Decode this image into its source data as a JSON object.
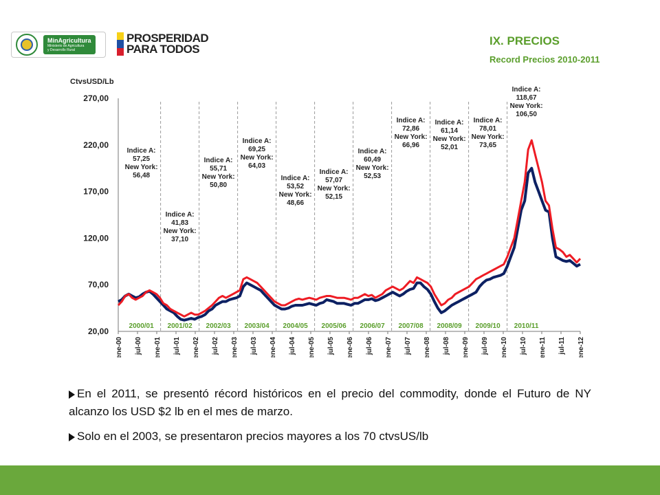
{
  "header": {
    "logo1": {
      "name": "MinAgricultura",
      "subtitle": "Ministerio de Agricultura y Desarrollo Rural"
    },
    "logo2": {
      "line1": "PROSPERIDAD",
      "line2": "PARA TODOS"
    },
    "title": "IX. PRECIOS",
    "subtitle": "Record Precios 2010-2011"
  },
  "colors": {
    "accent_green": "#5a9e2b",
    "footer_green": "#6aa83c",
    "series_indice": "#0d2163",
    "series_ny": "#ee1c24"
  },
  "chart_data": {
    "type": "line",
    "ylabel": "CtvsUSD/Lb",
    "ylim": [
      20,
      270
    ],
    "yticks": [
      "270,00",
      "220,00",
      "170,00",
      "120,00",
      "70,00",
      "20,00"
    ],
    "grid": false,
    "xticks": [
      "ene-00",
      "jul-00",
      "ene-01",
      "jul-01",
      "ene-02",
      "jul-02",
      "ene-03",
      "jul-03",
      "ene-04",
      "jul-04",
      "ene-05",
      "jul-05",
      "ene-06",
      "jul-06",
      "ene-07",
      "jul-07",
      "ene-08",
      "jul-08",
      "ene-09",
      "jul-09",
      "ene-10",
      "jul-10",
      "ene-11",
      "jul-11",
      "ene-12"
    ],
    "periods": [
      "2000/01",
      "2001/02",
      "2002/03",
      "2003/04",
      "2004/05",
      "2005/06",
      "2006/07",
      "2007/08",
      "2008/09",
      "2009/10",
      "2010/11"
    ],
    "annotations": [
      {
        "lines": [
          "Indice A:",
          "57,25",
          "New York:",
          "56,48"
        ]
      },
      {
        "lines": [
          "Indice A:",
          "41,83",
          "New York:",
          "37,10"
        ]
      },
      {
        "lines": [
          "Indice A:",
          "55,71",
          "New York:",
          "50,80"
        ]
      },
      {
        "lines": [
          "Indice A:",
          "69,25",
          "New York:",
          "64,03"
        ]
      },
      {
        "lines": [
          "Indice A:",
          "53,52",
          "New York:",
          "48,66"
        ]
      },
      {
        "lines": [
          "Indice A:",
          "57,07",
          "New York:",
          "52,15"
        ]
      },
      {
        "lines": [
          "Indice A:",
          "60,49",
          "New York:",
          "52,53"
        ]
      },
      {
        "lines": [
          "Indice A:",
          "72,86",
          "New York:",
          "66,96"
        ]
      },
      {
        "lines": [
          "Indice A:",
          "61,14",
          "New York:",
          "52,01"
        ]
      },
      {
        "lines": [
          "Indice A:",
          "78,01",
          "New York:",
          "73,65"
        ]
      },
      {
        "lines": [
          "Indice A:",
          "118,67",
          "New York:",
          "106,50"
        ]
      }
    ],
    "series": [
      {
        "color": "#0d2163",
        "points": [
          [
            0,
            52
          ],
          [
            1,
            54
          ],
          [
            2,
            58
          ],
          [
            3,
            60
          ],
          [
            4,
            58
          ],
          [
            5,
            56
          ],
          [
            6,
            57
          ],
          [
            7,
            60
          ],
          [
            8,
            62
          ],
          [
            9,
            63
          ],
          [
            10,
            60
          ],
          [
            11,
            56
          ],
          [
            12,
            52
          ],
          [
            13,
            48
          ],
          [
            14,
            44
          ],
          [
            15,
            42
          ],
          [
            16,
            40
          ],
          [
            17,
            36
          ],
          [
            18,
            33
          ],
          [
            19,
            32
          ],
          [
            20,
            33
          ],
          [
            21,
            34
          ],
          [
            22,
            33
          ],
          [
            23,
            35
          ],
          [
            24,
            36
          ],
          [
            25,
            38
          ],
          [
            26,
            42
          ],
          [
            27,
            44
          ],
          [
            28,
            48
          ],
          [
            29,
            50
          ],
          [
            30,
            52
          ],
          [
            31,
            52
          ],
          [
            32,
            54
          ],
          [
            33,
            55
          ],
          [
            34,
            56
          ],
          [
            35,
            58
          ],
          [
            36,
            68
          ],
          [
            37,
            72
          ],
          [
            38,
            70
          ],
          [
            39,
            68
          ],
          [
            40,
            66
          ],
          [
            41,
            64
          ],
          [
            42,
            60
          ],
          [
            43,
            56
          ],
          [
            44,
            52
          ],
          [
            45,
            48
          ],
          [
            46,
            46
          ],
          [
            47,
            44
          ],
          [
            48,
            44
          ],
          [
            49,
            45
          ],
          [
            50,
            47
          ],
          [
            51,
            48
          ],
          [
            52,
            48
          ],
          [
            53,
            48
          ],
          [
            54,
            49
          ],
          [
            55,
            50
          ],
          [
            56,
            49
          ],
          [
            57,
            48
          ],
          [
            58,
            50
          ],
          [
            59,
            51
          ],
          [
            60,
            54
          ],
          [
            61,
            53
          ],
          [
            62,
            52
          ],
          [
            63,
            50
          ],
          [
            64,
            50
          ],
          [
            65,
            50
          ],
          [
            66,
            49
          ],
          [
            67,
            48
          ],
          [
            68,
            50
          ],
          [
            69,
            50
          ],
          [
            70,
            52
          ],
          [
            71,
            54
          ],
          [
            72,
            54
          ],
          [
            73,
            55
          ],
          [
            74,
            53
          ],
          [
            75,
            54
          ],
          [
            76,
            56
          ],
          [
            77,
            58
          ],
          [
            78,
            60
          ],
          [
            79,
            62
          ],
          [
            80,
            60
          ],
          [
            81,
            58
          ],
          [
            82,
            60
          ],
          [
            83,
            63
          ],
          [
            84,
            65
          ],
          [
            85,
            66
          ],
          [
            86,
            72
          ],
          [
            87,
            72
          ],
          [
            88,
            68
          ],
          [
            89,
            65
          ],
          [
            90,
            60
          ],
          [
            91,
            52
          ],
          [
            92,
            45
          ],
          [
            93,
            40
          ],
          [
            94,
            42
          ],
          [
            95,
            45
          ],
          [
            96,
            48
          ],
          [
            97,
            50
          ],
          [
            98,
            52
          ],
          [
            99,
            54
          ],
          [
            100,
            56
          ],
          [
            101,
            58
          ],
          [
            102,
            60
          ],
          [
            103,
            62
          ],
          [
            104,
            68
          ],
          [
            105,
            72
          ],
          [
            106,
            75
          ],
          [
            107,
            76
          ],
          [
            108,
            78
          ],
          [
            109,
            79
          ],
          [
            110,
            80
          ],
          [
            111,
            82
          ],
          [
            112,
            90
          ],
          [
            113,
            100
          ],
          [
            114,
            110
          ],
          [
            115,
            130
          ],
          [
            116,
            150
          ],
          [
            117,
            160
          ],
          [
            118,
            190
          ],
          [
            119,
            195
          ],
          [
            120,
            180
          ],
          [
            121,
            170
          ],
          [
            122,
            160
          ],
          [
            123,
            150
          ],
          [
            124,
            148
          ],
          [
            125,
            120
          ],
          [
            126,
            100
          ],
          [
            127,
            98
          ],
          [
            128,
            96
          ],
          [
            129,
            95
          ],
          [
            130,
            96
          ],
          [
            131,
            93
          ],
          [
            132,
            90
          ],
          [
            133,
            92
          ]
        ]
      },
      {
        "color": "#ee1c24",
        "points": [
          [
            0,
            48
          ],
          [
            1,
            52
          ],
          [
            2,
            58
          ],
          [
            3,
            60
          ],
          [
            4,
            56
          ],
          [
            5,
            54
          ],
          [
            6,
            56
          ],
          [
            7,
            58
          ],
          [
            8,
            62
          ],
          [
            9,
            64
          ],
          [
            10,
            62
          ],
          [
            11,
            60
          ],
          [
            12,
            56
          ],
          [
            13,
            50
          ],
          [
            14,
            48
          ],
          [
            15,
            44
          ],
          [
            16,
            42
          ],
          [
            17,
            40
          ],
          [
            18,
            38
          ],
          [
            19,
            36
          ],
          [
            20,
            38
          ],
          [
            21,
            40
          ],
          [
            22,
            38
          ],
          [
            23,
            38
          ],
          [
            24,
            40
          ],
          [
            25,
            42
          ],
          [
            26,
            45
          ],
          [
            27,
            48
          ],
          [
            28,
            52
          ],
          [
            29,
            56
          ],
          [
            30,
            58
          ],
          [
            31,
            56
          ],
          [
            32,
            58
          ],
          [
            33,
            60
          ],
          [
            34,
            62
          ],
          [
            35,
            64
          ],
          [
            36,
            76
          ],
          [
            37,
            78
          ],
          [
            38,
            76
          ],
          [
            39,
            74
          ],
          [
            40,
            72
          ],
          [
            41,
            68
          ],
          [
            42,
            64
          ],
          [
            43,
            60
          ],
          [
            44,
            56
          ],
          [
            45,
            52
          ],
          [
            46,
            50
          ],
          [
            47,
            48
          ],
          [
            48,
            48
          ],
          [
            49,
            50
          ],
          [
            50,
            52
          ],
          [
            51,
            54
          ],
          [
            52,
            55
          ],
          [
            53,
            54
          ],
          [
            54,
            55
          ],
          [
            55,
            56
          ],
          [
            56,
            55
          ],
          [
            57,
            54
          ],
          [
            58,
            56
          ],
          [
            59,
            57
          ],
          [
            60,
            58
          ],
          [
            61,
            58
          ],
          [
            62,
            57
          ],
          [
            63,
            56
          ],
          [
            64,
            56
          ],
          [
            65,
            56
          ],
          [
            66,
            55
          ],
          [
            67,
            54
          ],
          [
            68,
            56
          ],
          [
            69,
            56
          ],
          [
            70,
            58
          ],
          [
            71,
            60
          ],
          [
            72,
            58
          ],
          [
            73,
            59
          ],
          [
            74,
            56
          ],
          [
            75,
            58
          ],
          [
            76,
            60
          ],
          [
            77,
            64
          ],
          [
            78,
            66
          ],
          [
            79,
            68
          ],
          [
            80,
            66
          ],
          [
            81,
            64
          ],
          [
            82,
            66
          ],
          [
            83,
            70
          ],
          [
            84,
            74
          ],
          [
            85,
            72
          ],
          [
            86,
            78
          ],
          [
            87,
            76
          ],
          [
            88,
            74
          ],
          [
            89,
            72
          ],
          [
            90,
            68
          ],
          [
            91,
            60
          ],
          [
            92,
            54
          ],
          [
            93,
            48
          ],
          [
            94,
            50
          ],
          [
            95,
            54
          ],
          [
            96,
            56
          ],
          [
            97,
            60
          ],
          [
            98,
            62
          ],
          [
            99,
            64
          ],
          [
            100,
            66
          ],
          [
            101,
            68
          ],
          [
            102,
            72
          ],
          [
            103,
            76
          ],
          [
            104,
            78
          ],
          [
            105,
            80
          ],
          [
            106,
            82
          ],
          [
            107,
            84
          ],
          [
            108,
            86
          ],
          [
            109,
            88
          ],
          [
            110,
            90
          ],
          [
            111,
            92
          ],
          [
            112,
            100
          ],
          [
            113,
            110
          ],
          [
            114,
            120
          ],
          [
            115,
            140
          ],
          [
            116,
            160
          ],
          [
            117,
            180
          ],
          [
            118,
            215
          ],
          [
            119,
            225
          ],
          [
            120,
            210
          ],
          [
            121,
            195
          ],
          [
            122,
            180
          ],
          [
            123,
            160
          ],
          [
            124,
            155
          ],
          [
            125,
            130
          ],
          [
            126,
            110
          ],
          [
            127,
            108
          ],
          [
            128,
            105
          ],
          [
            129,
            100
          ],
          [
            130,
            102
          ],
          [
            131,
            98
          ],
          [
            132,
            94
          ],
          [
            133,
            98
          ]
        ]
      }
    ]
  },
  "bullets": [
    "En el 2011, se presentó  récord históricos en el precio del commodity, donde el Futuro de NY alcanzo los USD $2 lb en el mes de marzo.",
    "Solo en el 2003, se presentaron precios mayores a los 70 ctvsUS/lb"
  ]
}
